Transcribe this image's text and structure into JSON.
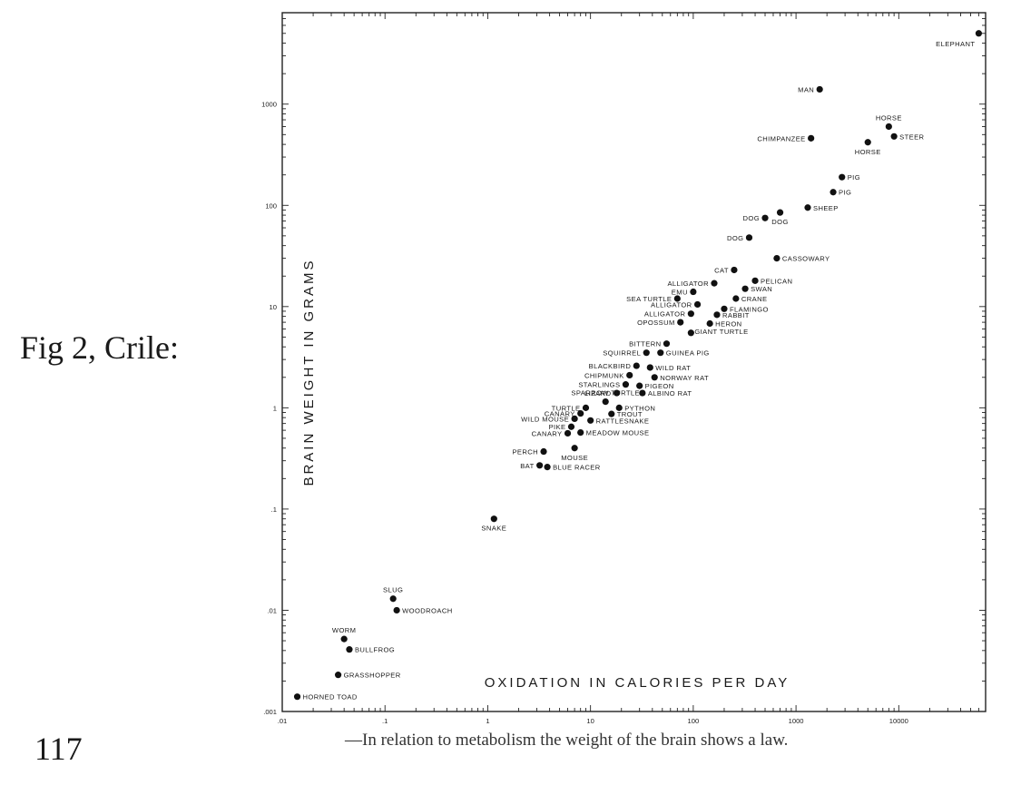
{
  "side_label": "Fig 2, Crile:",
  "page_number": "117",
  "caption": "—In relation to metabolism the weight of the brain shows a law.",
  "chart_data": {
    "type": "scatter",
    "xscale": "log",
    "yscale": "log",
    "xlim": [
      0.01,
      70000
    ],
    "ylim": [
      0.001,
      8000
    ],
    "xlabel": "OXIDATION IN CALORIES PER DAY",
    "ylabel": "BRAIN WEIGHT IN GRAMS",
    "grid": false,
    "x_ticks": [
      {
        "value": 0.01,
        "label": ".01"
      },
      {
        "value": 0.1,
        "label": ".1"
      },
      {
        "value": 1,
        "label": "1"
      },
      {
        "value": 10,
        "label": "10"
      },
      {
        "value": 100,
        "label": "100"
      },
      {
        "value": 1000,
        "label": "1000"
      },
      {
        "value": 10000,
        "label": "10000"
      }
    ],
    "y_ticks": [
      {
        "value": 0.001,
        "label": ".001"
      },
      {
        "value": 0.01,
        "label": ".01"
      },
      {
        "value": 0.1,
        "label": ".1"
      },
      {
        "value": 1,
        "label": "1"
      },
      {
        "value": 10,
        "label": "10"
      },
      {
        "value": 100,
        "label": "100"
      },
      {
        "value": 1000,
        "label": "1000"
      }
    ],
    "points": [
      {
        "label": "ELEPHANT",
        "x": 60000,
        "y": 5000,
        "pos": "below-left"
      },
      {
        "label": "MAN",
        "x": 1700,
        "y": 1400,
        "pos": "left"
      },
      {
        "label": "HORSE",
        "x": 8000,
        "y": 600,
        "pos": "above"
      },
      {
        "label": "STEER",
        "x": 9000,
        "y": 480,
        "pos": "right"
      },
      {
        "label": "CHIMPANZEE",
        "x": 1400,
        "y": 460,
        "pos": "left"
      },
      {
        "label": "HORSE",
        "x": 5000,
        "y": 420,
        "pos": "below"
      },
      {
        "label": "PIG",
        "x": 2800,
        "y": 190,
        "pos": "right"
      },
      {
        "label": "PIG",
        "x": 2300,
        "y": 135,
        "pos": "right"
      },
      {
        "label": "SHEEP",
        "x": 1300,
        "y": 95,
        "pos": "right"
      },
      {
        "label": "DOG",
        "x": 700,
        "y": 85,
        "pos": "below"
      },
      {
        "label": "DOG",
        "x": 500,
        "y": 75,
        "pos": "left"
      },
      {
        "label": "DOG",
        "x": 350,
        "y": 48,
        "pos": "left"
      },
      {
        "label": "CASSOWARY",
        "x": 650,
        "y": 30,
        "pos": "right"
      },
      {
        "label": "CAT",
        "x": 250,
        "y": 23,
        "pos": "left"
      },
      {
        "label": "PELICAN",
        "x": 400,
        "y": 18,
        "pos": "right"
      },
      {
        "label": "ALLIGATOR",
        "x": 160,
        "y": 17,
        "pos": "left"
      },
      {
        "label": "SWAN",
        "x": 320,
        "y": 15,
        "pos": "right"
      },
      {
        "label": "EMU",
        "x": 100,
        "y": 14,
        "pos": "left"
      },
      {
        "label": "SEA TURTLE",
        "x": 70,
        "y": 12,
        "pos": "left"
      },
      {
        "label": "CRANE",
        "x": 260,
        "y": 12,
        "pos": "right"
      },
      {
        "label": "ALLIGATOR",
        "x": 110,
        "y": 10.5,
        "pos": "left"
      },
      {
        "label": "FLAMINGO",
        "x": 200,
        "y": 9.5,
        "pos": "right"
      },
      {
        "label": "ALLIGATOR",
        "x": 95,
        "y": 8.5,
        "pos": "left"
      },
      {
        "label": "RABBIT",
        "x": 170,
        "y": 8.3,
        "pos": "right"
      },
      {
        "label": "OPOSSUM",
        "x": 75,
        "y": 7,
        "pos": "left"
      },
      {
        "label": "HERON",
        "x": 145,
        "y": 6.8,
        "pos": "right"
      },
      {
        "label": "GIANT TURTLE",
        "x": 95,
        "y": 5.5,
        "pos": "below-right"
      },
      {
        "label": "BITTERN",
        "x": 55,
        "y": 4.3,
        "pos": "left"
      },
      {
        "label": "SQUIRREL",
        "x": 35,
        "y": 3.5,
        "pos": "left"
      },
      {
        "label": "GUINEA PIG",
        "x": 48,
        "y": 3.5,
        "pos": "right"
      },
      {
        "label": "BLACKBIRD",
        "x": 28,
        "y": 2.6,
        "pos": "left"
      },
      {
        "label": "WILD RAT",
        "x": 38,
        "y": 2.5,
        "pos": "right"
      },
      {
        "label": "CHIPMUNK",
        "x": 24,
        "y": 2.1,
        "pos": "left"
      },
      {
        "label": "NORWAY RAT",
        "x": 42,
        "y": 2.0,
        "pos": "right"
      },
      {
        "label": "STARLINGS",
        "x": 22,
        "y": 1.7,
        "pos": "left"
      },
      {
        "label": "PIGEON",
        "x": 30,
        "y": 1.65,
        "pos": "right"
      },
      {
        "label": "LIZARD",
        "x": 18,
        "y": 1.4,
        "pos": "left"
      },
      {
        "label": "ALBINO RAT",
        "x": 32,
        "y": 1.4,
        "pos": "right"
      },
      {
        "label": "SPARROW TURTLE",
        "x": 14,
        "y": 1.15,
        "pos": "above"
      },
      {
        "label": "TURTLE",
        "x": 9,
        "y": 1.0,
        "pos": "left"
      },
      {
        "label": "PYTHON",
        "x": 19,
        "y": 1.0,
        "pos": "right"
      },
      {
        "label": "CANARY",
        "x": 8,
        "y": 0.88,
        "pos": "left"
      },
      {
        "label": "TROUT",
        "x": 16,
        "y": 0.87,
        "pos": "right"
      },
      {
        "label": "WILD MOUSE",
        "x": 7,
        "y": 0.78,
        "pos": "left"
      },
      {
        "label": "RATTLESNAKE",
        "x": 10,
        "y": 0.75,
        "pos": "right"
      },
      {
        "label": "PIKE",
        "x": 6.5,
        "y": 0.65,
        "pos": "left"
      },
      {
        "label": "CANARY",
        "x": 6,
        "y": 0.56,
        "pos": "left"
      },
      {
        "label": "MEADOW MOUSE",
        "x": 8,
        "y": 0.57,
        "pos": "right"
      },
      {
        "label": "PERCH",
        "x": 3.5,
        "y": 0.37,
        "pos": "left"
      },
      {
        "label": "MOUSE",
        "x": 7,
        "y": 0.4,
        "pos": "below"
      },
      {
        "label": "BAT",
        "x": 3.2,
        "y": 0.27,
        "pos": "left"
      },
      {
        "label": "BLUE RACER",
        "x": 3.8,
        "y": 0.26,
        "pos": "right"
      },
      {
        "label": "SNAKE",
        "x": 1.15,
        "y": 0.08,
        "pos": "below"
      },
      {
        "label": "SLUG",
        "x": 0.12,
        "y": 0.013,
        "pos": "above"
      },
      {
        "label": "WOODROACH",
        "x": 0.13,
        "y": 0.01,
        "pos": "right"
      },
      {
        "label": "WORM",
        "x": 0.04,
        "y": 0.0052,
        "pos": "above"
      },
      {
        "label": "BULLFROG",
        "x": 0.045,
        "y": 0.0041,
        "pos": "right"
      },
      {
        "label": "GRASSHOPPER",
        "x": 0.035,
        "y": 0.0023,
        "pos": "right"
      },
      {
        "label": "HORNED TOAD",
        "x": 0.014,
        "y": 0.0014,
        "pos": "right"
      }
    ]
  }
}
